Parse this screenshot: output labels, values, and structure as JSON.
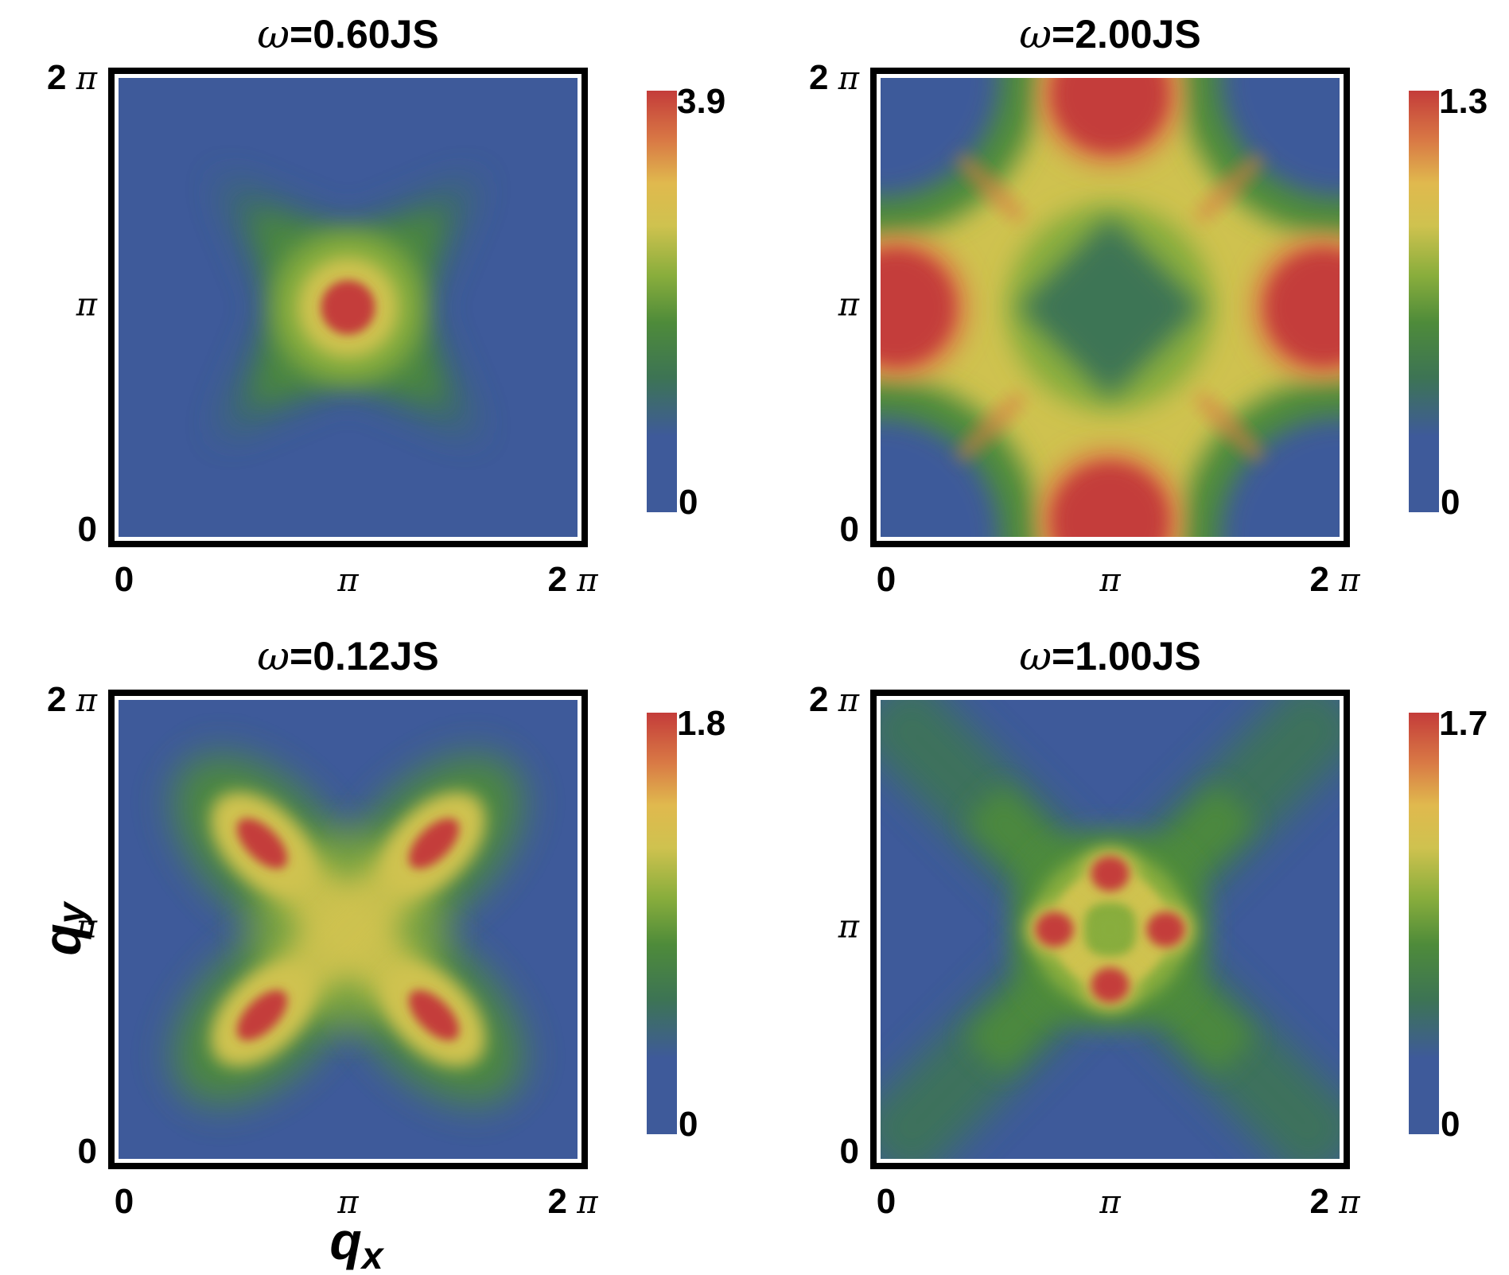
{
  "chart_data": [
    {
      "type": "heatmap",
      "title": "ω=0.60JS",
      "x_tick_labels": [
        "0",
        "π",
        "2 π"
      ],
      "y_tick_labels": [
        "0",
        "π",
        "2 π"
      ],
      "xlim": [
        0,
        6.2832
      ],
      "ylim": [
        0,
        6.2832
      ],
      "colorbar": {
        "min": 0,
        "max": 3.9,
        "min_label": "0",
        "max_label": "3.9"
      },
      "pattern": "central peak at (π,π) with four faint diagonal arms"
    },
    {
      "type": "heatmap",
      "title": "ω=2.00JS",
      "x_tick_labels": [
        "0",
        "π",
        "2 π"
      ],
      "y_tick_labels": [
        "0",
        "π",
        "2 π"
      ],
      "xlim": [
        0,
        6.2832
      ],
      "ylim": [
        0,
        6.2832
      ],
      "colorbar": {
        "min": 0,
        "max": 1.3,
        "min_label": "0",
        "max_label": "1.3"
      },
      "pattern": "peaks at (π,0), (π,2π), (0,π), (2π,π); diamond-shaped low region at (π,π); low corners"
    },
    {
      "type": "heatmap",
      "title": "ω=0.12JS",
      "x_tick_labels": [
        "0",
        "π",
        "2 π"
      ],
      "y_tick_labels": [
        "0",
        "π",
        "2 π"
      ],
      "xlim": [
        0,
        6.2832
      ],
      "ylim": [
        0,
        6.2832
      ],
      "xlabel": "qx",
      "ylabel": "qy",
      "colorbar": {
        "min": 0,
        "max": 1.8,
        "min_label": "0",
        "max_label": "1.8"
      },
      "pattern": "X-shaped intensity with four elongated peaks along the diagonals near (π±0.45π, π±0.45π)"
    },
    {
      "type": "heatmap",
      "title": "ω=1.00JS",
      "x_tick_labels": [
        "0",
        "π",
        "2 π"
      ],
      "y_tick_labels": [
        "0",
        "π",
        "2 π"
      ],
      "xlim": [
        0,
        6.2832
      ],
      "ylim": [
        0,
        6.2832
      ],
      "colorbar": {
        "min": 0,
        "max": 1.7,
        "min_label": "0",
        "max_label": "1.7"
      },
      "pattern": "ring around (π,π) with four peaks on the axes, plus diagonal arms reaching the corners"
    }
  ],
  "colormap": [
    "#3e5a9a",
    "#3d7454",
    "#4e8b3a",
    "#88ad3c",
    "#cfc24f",
    "#e0b94e",
    "#d97a45",
    "#c43c3a"
  ]
}
